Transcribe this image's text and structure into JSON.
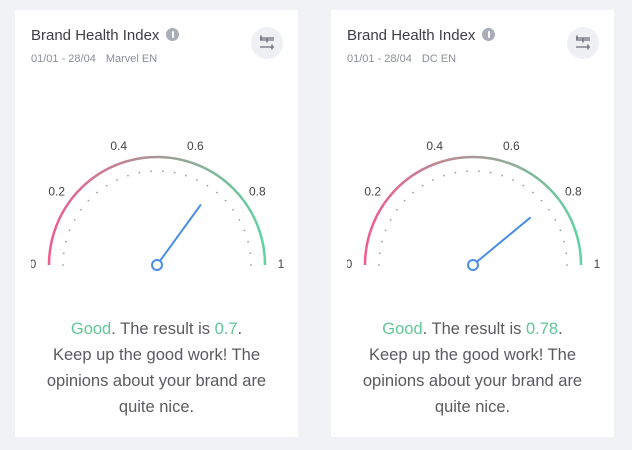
{
  "chart_data": [
    {
      "type": "gauge",
      "title": "Brand Health Index",
      "date_range": "01/01 - 28/04",
      "brand": "Marvel EN",
      "value": 0.7,
      "ylim": [
        0,
        1
      ],
      "yticks": [
        0,
        0.2,
        0.4,
        0.6,
        0.8,
        1
      ],
      "color": "#4a8fe4",
      "arc_colors": [
        "#ee5e8c",
        "#5fd3a0"
      ],
      "rating_color": "#62c796",
      "summary": {
        "rating": "Good",
        "text": ". The result is ",
        "end": "."
      },
      "message": "Keep up the good work! The opinions about your brand are quite nice."
    },
    {
      "type": "gauge",
      "title": "Brand Health Index",
      "date_range": "01/01 - 28/04",
      "brand": "DC EN",
      "value": 0.78,
      "ylim": [
        0,
        1
      ],
      "yticks": [
        0,
        0.2,
        0.4,
        0.6,
        0.8,
        1
      ],
      "color": "#4a8fe4",
      "arc_colors": [
        "#ee5e8c",
        "#5fd3a0"
      ],
      "rating_color": "#62c796",
      "summary": {
        "rating": "Good",
        "text": ". The result is ",
        "end": "."
      },
      "message": "Keep up the good work! The opinions about your brand are quite nice."
    }
  ]
}
